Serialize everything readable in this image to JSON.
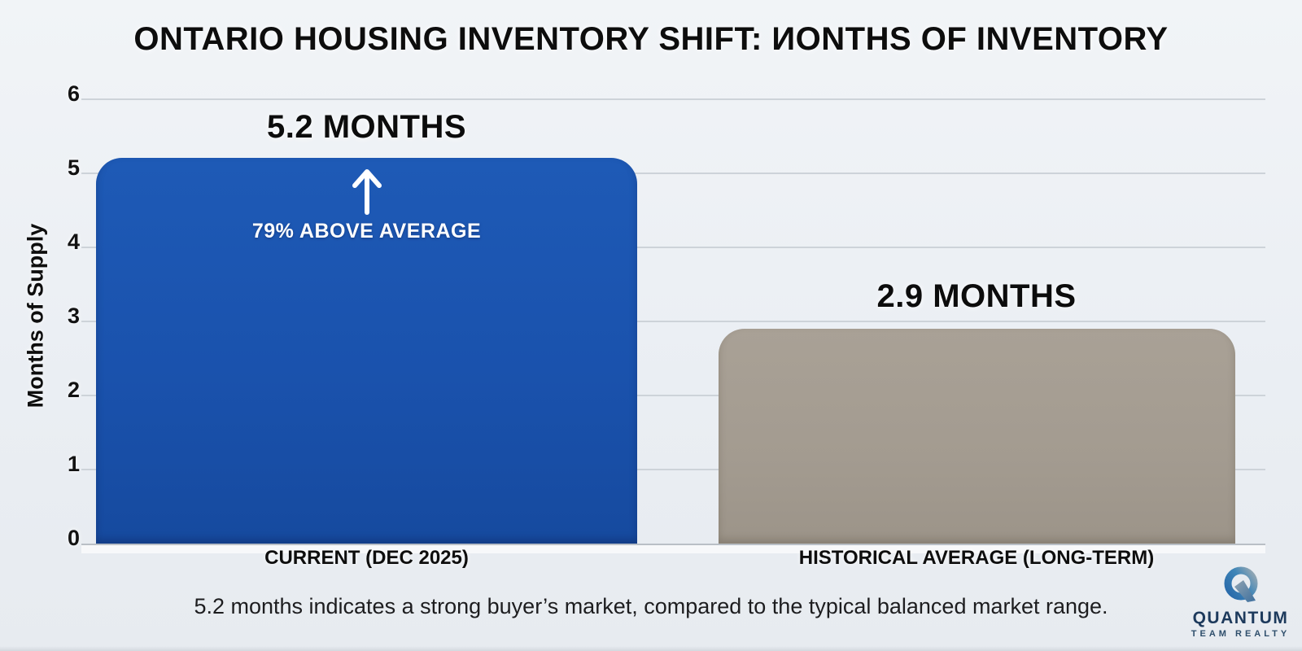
{
  "title": "ONTARIO HOUSING INVENTORY SHIFT: ИONTHS OF INVENTORY",
  "chart_data": {
    "type": "bar",
    "categories": [
      "CURRENT (DEC 2025)",
      "HISTORICAL AVERAGE (LONG-TERM)"
    ],
    "values": [
      5.2,
      2.9
    ],
    "bar_labels": [
      "5.2 MONTHS",
      "2.9 MONTHS"
    ],
    "bar_colors": [
      "#1a52ad",
      "#a39b90"
    ],
    "annotation": "79% ABOVE AVERAGE",
    "annotation_icon": "up-arrow-icon",
    "title": "ONTARIO HOUSING INVENTORY SHIFT: ИONTHS OF INVENTORY",
    "xlabel": "",
    "ylabel": "Months of Supply",
    "yticks": [
      0,
      1,
      2,
      3,
      4,
      5,
      6
    ],
    "ylim": [
      0,
      6
    ],
    "grid": "horizontal",
    "legend": "none"
  },
  "caption": "5.2 months indicates a strong buyer’s market, compared to the typical balanced market range.",
  "logo": {
    "brand": "QUANTUM",
    "tagline": "TEAM REALTY"
  },
  "colors": {
    "background": "#eaeef3",
    "bar_current": "#1a52ad",
    "bar_historical": "#a39b90",
    "gridline": "#cdd3d9",
    "text": "#0d0d0d",
    "annotation_text": "#ffffff",
    "brand_navy": "#1d3a5c"
  }
}
